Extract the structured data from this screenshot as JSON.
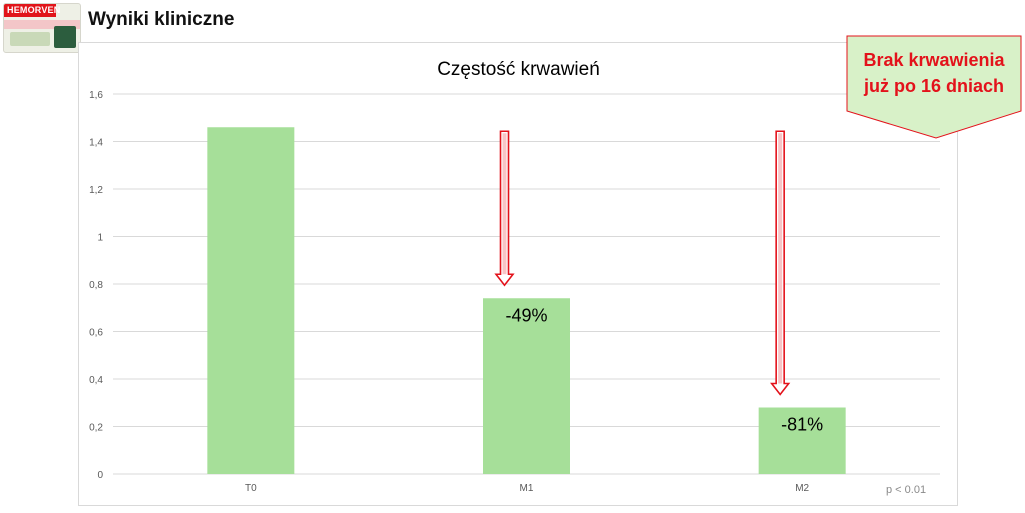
{
  "page": {
    "heading": "Wyniki kliniczne"
  },
  "logo": {
    "brand": "HEMORVEN"
  },
  "callout": {
    "line1": "Brak krwawienia",
    "line2": "już po 16 dniach"
  },
  "footnote": "p < 0.01",
  "colors": {
    "bar": "#a6df99",
    "arrow": "#e3121b",
    "callout_bg": "#d8f1c8",
    "callout_text": "#e3121b",
    "grid": "#d9d9d9"
  },
  "chart_data": {
    "type": "bar",
    "title": "Częstość krwawień",
    "categories": [
      "T0",
      "M1",
      "M2"
    ],
    "values": [
      1.46,
      0.74,
      0.28
    ],
    "data_labels": [
      "",
      "-49%",
      "-81%"
    ],
    "ylim": [
      0,
      1.6
    ],
    "yticks": [
      0,
      0.2,
      0.4,
      0.6,
      0.8,
      1,
      1.2,
      1.4,
      1.6
    ],
    "ytick_labels": [
      "0",
      "0,2",
      "0,4",
      "0,6",
      "0,8",
      "1",
      "1,2",
      "1,4",
      "1,6"
    ],
    "grid": true,
    "xlabel": "",
    "ylabel": ""
  }
}
